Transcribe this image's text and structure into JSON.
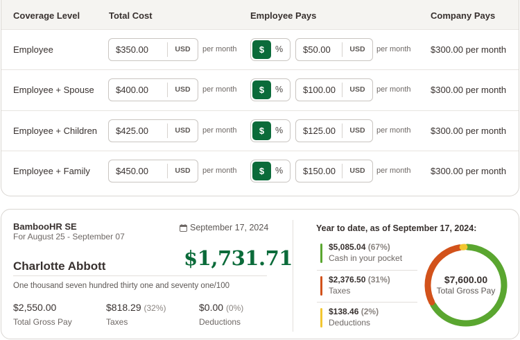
{
  "table": {
    "headers": [
      "Coverage Level",
      "Total Cost",
      "Employee Pays",
      "Company Pays"
    ],
    "rows": [
      {
        "level": "Employee",
        "total_cost": "$350.00",
        "currency": "USD",
        "per": "per month",
        "emp_pays": "$50.00",
        "emp_currency": "USD",
        "emp_per": "per month",
        "company_pays": "$300.00 per month"
      },
      {
        "level": "Employee + Spouse",
        "total_cost": "$400.00",
        "currency": "USD",
        "per": "per month",
        "emp_pays": "$100.00",
        "emp_currency": "USD",
        "emp_per": "per month",
        "company_pays": "$300.00 per month"
      },
      {
        "level": "Employee + Children",
        "total_cost": "$425.00",
        "currency": "USD",
        "per": "per month",
        "emp_pays": "$125.00",
        "emp_currency": "USD",
        "emp_per": "per month",
        "company_pays": "$300.00 per month"
      },
      {
        "level": "Employee + Family",
        "total_cost": "$450.00",
        "currency": "USD",
        "per": "per month",
        "emp_pays": "$150.00",
        "emp_currency": "USD",
        "emp_per": "per month",
        "company_pays": "$300.00 per month"
      }
    ],
    "toggle": {
      "dollar": "$",
      "percent": "%",
      "selected": "$"
    }
  },
  "paystub": {
    "company": "BambooHR SE",
    "period": "For August 25 - September 07",
    "date": "September 17, 2024",
    "employee": "Charlotte Abbott",
    "net_pay": "$1,731.71",
    "net_words": "One thousand seven hundred thirty one and seventy one/100",
    "summary": [
      {
        "value": "$2,550.00",
        "pct": "",
        "label": "Total Gross Pay"
      },
      {
        "value": "$818.29",
        "pct": "(32%)",
        "label": "Taxes"
      },
      {
        "value": "$0.00",
        "pct": "(0%)",
        "label": "Deductions"
      }
    ]
  },
  "ytd": {
    "title": "Year to date, as of September 17, 2024:",
    "items": [
      {
        "value": "$5,085.04",
        "pct": "(67%)",
        "label": "Cash in your pocket",
        "color": "#5aa630",
        "fraction": 0.67
      },
      {
        "value": "$2,376.50",
        "pct": "(31%)",
        "label": "Taxes",
        "color": "#d2521b",
        "fraction": 0.31
      },
      {
        "value": "$138.46",
        "pct": "(2%)",
        "label": "Deductions",
        "color": "#f2c631",
        "fraction": 0.02
      }
    ],
    "total": "$7,600.00",
    "total_label": "Total Gross Pay"
  },
  "colors": {
    "accent": "#0b6b3a",
    "header_bg": "#f5f4f1",
    "border": "#d9d6d2"
  }
}
